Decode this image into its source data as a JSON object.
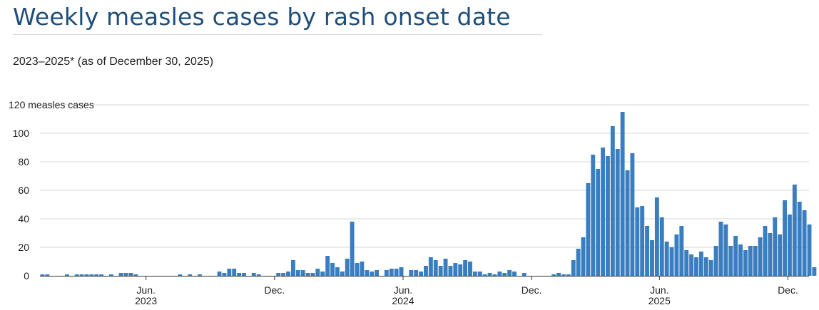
{
  "chart_data": {
    "type": "bar",
    "title": "Weekly measles cases by rash onset date",
    "subtitle": "2023–2025* (as of December 30, 2025)",
    "ylabel": "measles cases",
    "ylim": [
      0,
      120
    ],
    "yticks": [
      0,
      20,
      40,
      60,
      80,
      100,
      120
    ],
    "grid": true,
    "bar_color": "#3a7ebf",
    "x_range": [
      "2023-01-01",
      "2025-12-31"
    ],
    "x_ticks": [
      {
        "date": "2023-06-01",
        "label": "Jun.",
        "year": "2023"
      },
      {
        "date": "2023-12-01",
        "label": "Dec.",
        "year": ""
      },
      {
        "date": "2024-06-01",
        "label": "Jun.",
        "year": "2024"
      },
      {
        "date": "2024-12-01",
        "label": "Dec.",
        "year": ""
      },
      {
        "date": "2025-06-01",
        "label": "Jun.",
        "year": "2025"
      },
      {
        "date": "2025-12-01",
        "label": "Dec.",
        "year": ""
      }
    ],
    "series": [
      {
        "start_week": "2023-01-01",
        "values": [
          1,
          1,
          0,
          0,
          0,
          1,
          0,
          1,
          1,
          1,
          1,
          1,
          1,
          0,
          1,
          0,
          2,
          2,
          2,
          1,
          0,
          0,
          0,
          0,
          0,
          0,
          0,
          0,
          1,
          0,
          1,
          0,
          1,
          0,
          0,
          0,
          3,
          2,
          5,
          5,
          2,
          2,
          0,
          2,
          1,
          0,
          0,
          0,
          2,
          2,
          3,
          11,
          4,
          4,
          2,
          2,
          5,
          3,
          14,
          9,
          6,
          3,
          12,
          38,
          9,
          10,
          4,
          3,
          4,
          0,
          4,
          5,
          5,
          6,
          0,
          4,
          4,
          3,
          7,
          13,
          11,
          7,
          12,
          7,
          9,
          8,
          11,
          10,
          3,
          3,
          1,
          2,
          1,
          3,
          2,
          4,
          3,
          0,
          2,
          0,
          0,
          0,
          0,
          0,
          1,
          2,
          1,
          1,
          11,
          19,
          27,
          65,
          85,
          75,
          90,
          84,
          105,
          89,
          115,
          74,
          86,
          48,
          49,
          35,
          25,
          55,
          41,
          24,
          20,
          29,
          35,
          18,
          15,
          13,
          17,
          13,
          11,
          21,
          38,
          36,
          21,
          28,
          22,
          18,
          21,
          21,
          27,
          35,
          30,
          41,
          29,
          53,
          43,
          64,
          52,
          46,
          36,
          6
        ]
      }
    ]
  }
}
